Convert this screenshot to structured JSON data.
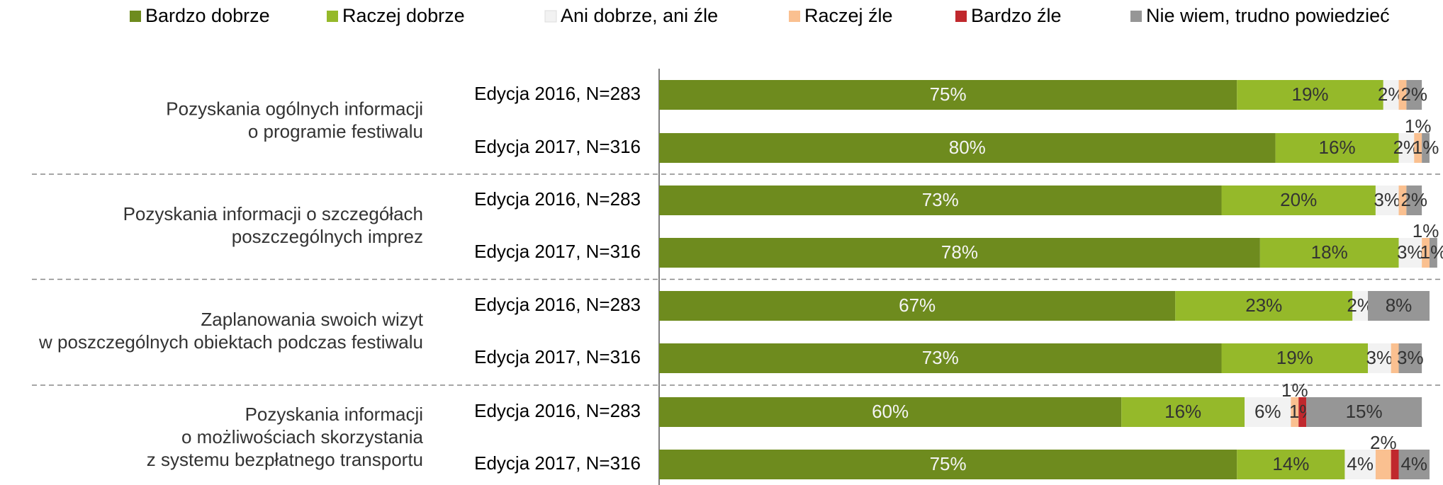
{
  "chart_data": {
    "type": "stacked_bar_horizontal",
    "categories": [
      "Edycja 2016, N=283",
      "Edycja 2017, N=316",
      "Edycja 2016, N=283",
      "Edycja 2017, N=316",
      "Edycja 2016, N=283",
      "Edycja 2017, N=316",
      "Edycja 2016, N=283",
      "Edycja 2017, N=316"
    ],
    "groups": [
      [
        "Pozyskania ogólnych informacji",
        "o programie festiwalu"
      ],
      [
        "Pozyskania informacji o szczegółach",
        "poszczególnych imprez"
      ],
      [
        "Zaplanowania swoich wizyt",
        "w poszczególnych obiektach podczas festiwalu"
      ],
      [
        "Pozyskania informacji",
        "o możliwościach skorzystania",
        "z systemu bezpłatnego transportu"
      ]
    ],
    "xlim": [
      0,
      100
    ],
    "series": [
      {
        "name": "Bardzo dobrze",
        "color": "#6e8b1e",
        "values": [
          75,
          80,
          73,
          78,
          67,
          73,
          60,
          75
        ],
        "value_labels": [
          "75%",
          "80%",
          "73%",
          "78%",
          "67%",
          "73%",
          "60%",
          "75%"
        ]
      },
      {
        "name": "Raczej dobrze",
        "color": "#95b92a",
        "values": [
          19,
          16,
          20,
          18,
          23,
          19,
          16,
          14
        ],
        "value_labels": [
          "19%",
          "16%",
          "20%",
          "18%",
          "23%",
          "19%",
          "16%",
          "14%"
        ]
      },
      {
        "name": "Ani dobrze, ani źle",
        "color": "#f2f2f2",
        "values": [
          2,
          2,
          3,
          3,
          2,
          3,
          6,
          4
        ],
        "value_labels": [
          "2%",
          "2%",
          "3%",
          "3%",
          "2%",
          "3%",
          "6%",
          "4%"
        ]
      },
      {
        "name": "Raczej źle",
        "color": "#fac090",
        "values": [
          1,
          1,
          1,
          1,
          0,
          1,
          1,
          2
        ],
        "value_labels": [
          null,
          "1%",
          null,
          "1%",
          null,
          null,
          "1%",
          "2%"
        ]
      },
      {
        "name": "Bardzo źle",
        "color": "#c0282d",
        "values": [
          0,
          0,
          0,
          0,
          0,
          0,
          1,
          1
        ],
        "value_labels": [
          null,
          null,
          null,
          null,
          null,
          null,
          "1%",
          null
        ]
      },
      {
        "name": "Nie wiem, trudno powiedzieć",
        "color": "#969696",
        "values": [
          2,
          1,
          2,
          1,
          8,
          3,
          15,
          4
        ],
        "value_labels": [
          "2%",
          "1%",
          "2%",
          "1%",
          "8%",
          "3%",
          "15%",
          "4%"
        ]
      }
    ]
  }
}
